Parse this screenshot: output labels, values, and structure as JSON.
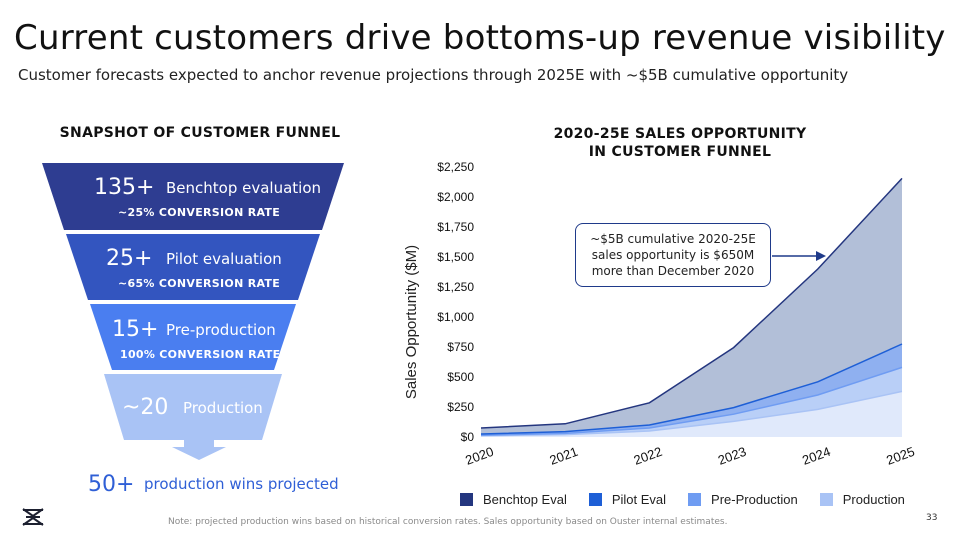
{
  "title": "Current customers drive bottoms-up revenue visibility",
  "subtitle": "Customer forecasts expected to anchor revenue projections through 2025E with ~$5B cumulative opportunity",
  "funnel": {
    "heading": "SNAPSHOT OF CUSTOMER FUNNEL",
    "stages": [
      {
        "count": "135+",
        "label": "Benchtop evaluation",
        "rate": "~25% CONVERSION RATE",
        "color": "#2e3d91"
      },
      {
        "count": "25+",
        "label": "Pilot evaluation",
        "rate": "~65% CONVERSION RATE",
        "color": "#3355bf"
      },
      {
        "count": "15+",
        "label": "Pre-production",
        "rate": "100% CONVERSION RATE",
        "color": "#4a7ef0"
      },
      {
        "count": "~20",
        "label": "Production",
        "rate": "",
        "color": "#a9c3f5"
      }
    ],
    "wins_count": "50+",
    "wins_text": "production wins projected"
  },
  "chart_heading": [
    "2020-25E SALES OPPORTUNITY",
    "IN CUSTOMER FUNNEL"
  ],
  "callout": [
    "~$5B cumulative 2020-25E",
    "sales opportunity is $650M",
    "more than December 2020"
  ],
  "note": "Note: projected production wins based on historical conversion rates. Sales opportunity based on Ouster internal estimates.",
  "page_number": "33",
  "chart_data": {
    "type": "area",
    "stacked": true,
    "ylabel": "Sales Opportunity ($M)",
    "xlabel": "",
    "x": [
      "2020",
      "2021",
      "2022",
      "2023",
      "2024",
      "2025"
    ],
    "ylim": [
      0,
      2250
    ],
    "yticks": [
      0,
      250,
      500,
      750,
      1000,
      1250,
      1500,
      1750,
      2000,
      2250
    ],
    "ytick_labels": [
      "$0",
      "$250",
      "$500",
      "$750",
      "$1,000",
      "$1,250",
      "$1,500",
      "$1,750",
      "$2,000",
      "$2,250"
    ],
    "series": [
      {
        "name": "Production",
        "values": [
          10,
          20,
          50,
          130,
          230,
          380
        ],
        "color": "#a9c3f5"
      },
      {
        "name": "Pre-Production",
        "values": [
          5,
          10,
          25,
          60,
          120,
          200
        ],
        "color": "#6f9cf2"
      },
      {
        "name": "Pilot Eval",
        "values": [
          10,
          15,
          25,
          55,
          110,
          195
        ],
        "color": "#1e5fd6"
      },
      {
        "name": "Benchtop Eval",
        "values": [
          50,
          65,
          185,
          500,
          940,
          1380
        ],
        "color": "#24367f"
      }
    ],
    "legend_order": [
      "Benchtop Eval",
      "Pilot Eval",
      "Pre-Production",
      "Production"
    ],
    "legend_position": "bottom",
    "grid": false
  }
}
